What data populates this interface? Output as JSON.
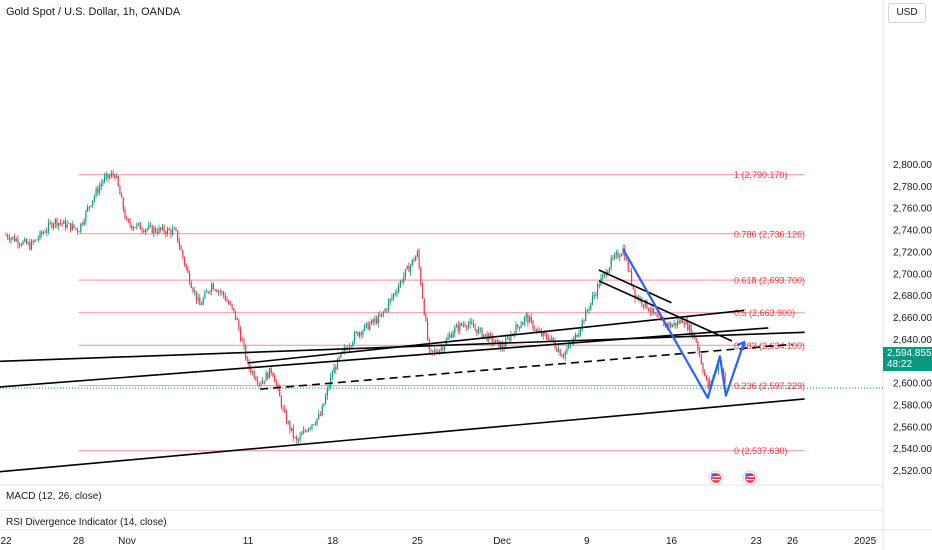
{
  "header": {
    "title": "Gold Spot / U.S. Dollar, 1h, OANDA",
    "currency_button": "USD"
  },
  "price_badge": {
    "price": "2,594.855",
    "countdown": "48:22",
    "color": "#089981"
  },
  "indicators": {
    "macd": "MACD (12, 26, close)",
    "rsi": "RSI Divergence Indicator (14, close)"
  },
  "chart_data": {
    "type": "candlestick",
    "title": "Gold Spot / U.S. Dollar, 1h, OANDA",
    "ylim": [
      2510,
      2805
    ],
    "y_ticks": [
      2520,
      2540,
      2560,
      2580,
      2600,
      2620,
      2640,
      2660,
      2680,
      2700,
      2720,
      2740,
      2760,
      2780,
      2800
    ],
    "y_tick_labels": [
      "2,520.000",
      "2,540.000",
      "2,560.000",
      "2,580.000",
      "2,600.000",
      "2,620.000",
      "2,640.000",
      "2,660.000",
      "2,680.000",
      "2,700.000",
      "2,720.000",
      "2,740.000",
      "2,760.000",
      "2,780.000",
      "2,800.000"
    ],
    "x_ticks": [
      "22",
      "28",
      "Nov",
      "11",
      "18",
      "25",
      "Dec",
      "9",
      "16",
      "23",
      "26",
      "2025"
    ],
    "x_tick_dates": [
      "2024-10-22",
      "2024-10-28",
      "2024-11-01",
      "2024-11-11",
      "2024-11-18",
      "2024-11-25",
      "2024-12-02",
      "2024-12-09",
      "2024-12-16",
      "2024-12-23",
      "2024-12-26",
      "2025-01-01"
    ],
    "fibonacci": [
      {
        "ratio": "1",
        "price": 2790.17,
        "label": "1 (2,790.170)"
      },
      {
        "ratio": "0.786",
        "price": 2736.126,
        "label": "0.786 (2,736.126)"
      },
      {
        "ratio": "0.618",
        "price": 2693.7,
        "label": "0.618 (2,693.700)"
      },
      {
        "ratio": "0.5",
        "price": 2663.9,
        "label": "0.5 (2,663.900)"
      },
      {
        "ratio": "0.382",
        "price": 2634.1,
        "label": "0.382 (2,634.100)"
      },
      {
        "ratio": "0.236",
        "price": 2597.229,
        "label": "0.236 (2,597.229)"
      },
      {
        "ratio": "0",
        "price": 2537.63,
        "label": "0 (2,537.630)"
      }
    ],
    "price_path": [
      [
        "2024-10-22",
        2735
      ],
      [
        "2024-10-24",
        2725
      ],
      [
        "2024-10-26",
        2748
      ],
      [
        "2024-10-28",
        2740
      ],
      [
        "2024-10-29",
        2765
      ],
      [
        "2024-10-30",
        2785
      ],
      [
        "2024-10-31",
        2791
      ],
      [
        "2024-11-01",
        2745
      ],
      [
        "2024-11-03",
        2740
      ],
      [
        "2024-11-05",
        2738
      ],
      [
        "2024-11-06",
        2700
      ],
      [
        "2024-11-07",
        2670
      ],
      [
        "2024-11-08",
        2690
      ],
      [
        "2024-11-09",
        2680
      ],
      [
        "2024-11-10",
        2660
      ],
      [
        "2024-11-11",
        2615
      ],
      [
        "2024-11-12",
        2600
      ],
      [
        "2024-11-13",
        2612
      ],
      [
        "2024-11-14",
        2570
      ],
      [
        "2024-11-15",
        2545
      ],
      [
        "2024-11-16",
        2560
      ],
      [
        "2024-11-17",
        2570
      ],
      [
        "2024-11-18",
        2610
      ],
      [
        "2024-11-19",
        2630
      ],
      [
        "2024-11-20",
        2645
      ],
      [
        "2024-11-22",
        2660
      ],
      [
        "2024-11-24",
        2700
      ],
      [
        "2024-11-25",
        2718
      ],
      [
        "2024-11-26",
        2625
      ],
      [
        "2024-11-27",
        2632
      ],
      [
        "2024-11-28",
        2648
      ],
      [
        "2024-11-29",
        2655
      ],
      [
        "2024-12-01",
        2640
      ],
      [
        "2024-12-02",
        2632
      ],
      [
        "2024-12-03",
        2648
      ],
      [
        "2024-12-04",
        2660
      ],
      [
        "2024-12-05",
        2645
      ],
      [
        "2024-12-06",
        2640
      ],
      [
        "2024-12-07",
        2625
      ],
      [
        "2024-12-08",
        2640
      ],
      [
        "2024-12-09",
        2665
      ],
      [
        "2024-12-10",
        2690
      ],
      [
        "2024-12-11",
        2710
      ],
      [
        "2024-12-12",
        2722
      ],
      [
        "2024-12-13",
        2680
      ],
      [
        "2024-12-14",
        2670
      ],
      [
        "2024-12-15",
        2655
      ],
      [
        "2024-12-16",
        2652
      ],
      [
        "2024-12-17",
        2658
      ],
      [
        "2024-12-18",
        2640
      ],
      [
        "2024-12-19",
        2595
      ],
      [
        "2024-12-20",
        2620
      ],
      [
        "2024-12-20T12:00",
        2596
      ]
    ],
    "projection_path": [
      [
        "2024-12-12",
        2722
      ],
      [
        "2024-12-19",
        2586
      ],
      [
        "2024-12-20",
        2624
      ],
      [
        "2024-12-20T12:00",
        2588
      ],
      [
        "2024-12-22",
        2637
      ]
    ],
    "trendlines": [
      {
        "style": "solid",
        "from": [
          "2024-10-18",
          2618
        ],
        "to": [
          "2024-12-27",
          2646
        ]
      },
      {
        "style": "solid",
        "from": [
          "2024-10-18",
          2593
        ],
        "to": [
          "2024-12-24",
          2650
        ]
      },
      {
        "style": "solid",
        "from": [
          "2024-11-11",
          2618
        ],
        "to": [
          "2024-12-22",
          2666
        ]
      },
      {
        "style": "dashed",
        "from": [
          "2024-11-12",
          2594
        ],
        "to": [
          "2024-12-26",
          2635
        ]
      },
      {
        "style": "solid",
        "from": [
          "2024-10-18",
          2515
        ],
        "to": [
          "2024-12-27",
          2585
        ]
      },
      {
        "style": "solid",
        "from": [
          "2024-12-10",
          2703
        ],
        "to": [
          "2024-12-16",
          2673
        ]
      },
      {
        "style": "solid",
        "from": [
          "2024-12-10",
          2693
        ],
        "to": [
          "2024-12-21",
          2638
        ]
      }
    ],
    "last_price": 2594.855
  }
}
